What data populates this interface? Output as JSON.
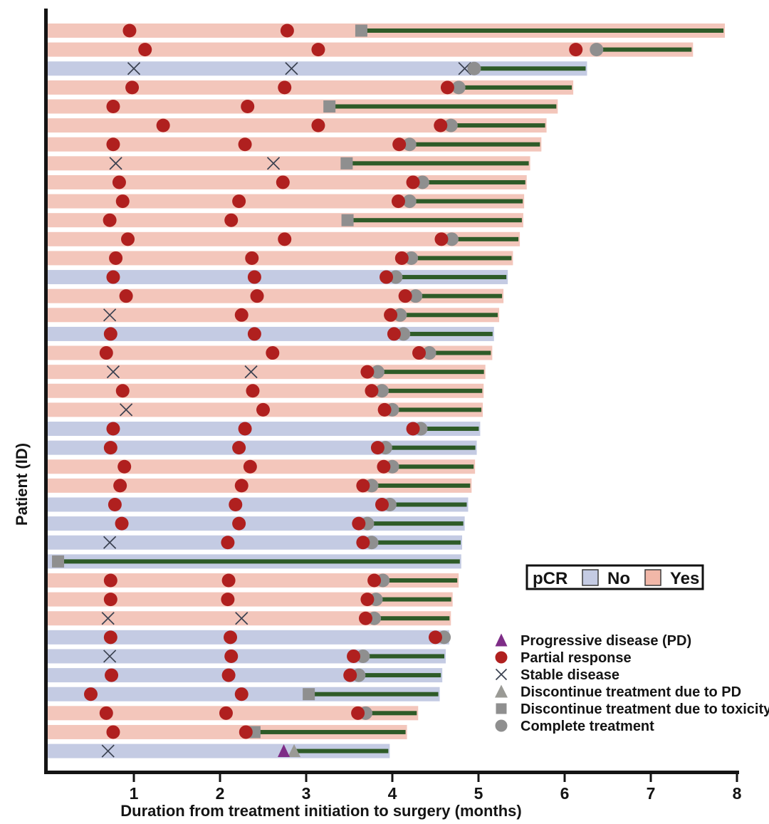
{
  "axes": {
    "x_label": "Duration from treatment initiation to surgery (months)",
    "y_label": "Patient (ID)",
    "x_ticks": [
      1,
      2,
      3,
      4,
      5,
      6,
      7,
      8
    ],
    "x_range": [
      0,
      8
    ]
  },
  "colors": {
    "bar_yes": "#f3c6bb",
    "bar_no": "#c4cbe3",
    "treatment_line": "#2e5b28",
    "partial_response": "#b0201f",
    "gray_marker": "#8f8f8f",
    "gray_triangle": "#9a9a95",
    "progressive_disease": "#7e2d87",
    "stable_disease": "#3a4150",
    "axis": "#141414",
    "legend_no_swatch": "#c4cbe3",
    "legend_yes_swatch": "#f1b7a8"
  },
  "legend": {
    "pcr": {
      "title": "pCR",
      "no_label": "No",
      "yes_label": "Yes"
    },
    "markers": [
      {
        "type": "pd",
        "label": "Progressive disease (PD)"
      },
      {
        "type": "pr",
        "label": "Partial response"
      },
      {
        "type": "sd",
        "label": "Stable disease"
      },
      {
        "type": "disc_pd",
        "label": "Discontinue treatment due to PD"
      },
      {
        "type": "disc_tox",
        "label": "Discontinue treatment due to toxicity"
      },
      {
        "type": "complete",
        "label": "Complete treatment"
      }
    ]
  },
  "chart_data": {
    "type": "swimmer",
    "x_unit": "months",
    "xlabel": "Duration from treatment initiation to surgery (months)",
    "ylabel": "Patient (ID)",
    "xlim": [
      0,
      8
    ],
    "event_types": {
      "pr": "Partial response",
      "sd": "Stable disease",
      "pd": "Progressive disease (PD)",
      "disc_pd": "Discontinue treatment due to PD",
      "disc_tox": "Discontinue treatment due to toxicity",
      "complete": "Complete treatment"
    },
    "patients": [
      {
        "pcr": "Yes",
        "end": 7.86,
        "events": [
          [
            "pr",
            0.95
          ],
          [
            "pr",
            2.78
          ],
          [
            "disc_tox",
            3.64
          ]
        ]
      },
      {
        "pcr": "Yes",
        "end": 7.49,
        "events": [
          [
            "pr",
            1.13
          ],
          [
            "pr",
            3.14
          ],
          [
            "pr",
            6.13
          ],
          [
            "complete",
            6.37
          ]
        ]
      },
      {
        "pcr": "No",
        "end": 6.26,
        "events": [
          [
            "sd",
            1.0
          ],
          [
            "sd",
            2.83
          ],
          [
            "sd",
            4.84
          ],
          [
            "complete",
            4.95
          ]
        ]
      },
      {
        "pcr": "Yes",
        "end": 6.1,
        "events": [
          [
            "pr",
            0.98
          ],
          [
            "pr",
            2.75
          ],
          [
            "pr",
            4.64
          ],
          [
            "complete",
            4.77
          ]
        ]
      },
      {
        "pcr": "Yes",
        "end": 5.92,
        "events": [
          [
            "pr",
            0.76
          ],
          [
            "pr",
            2.32
          ],
          [
            "disc_tox",
            3.27
          ]
        ]
      },
      {
        "pcr": "Yes",
        "end": 5.79,
        "events": [
          [
            "pr",
            1.34
          ],
          [
            "pr",
            3.14
          ],
          [
            "pr",
            4.56
          ],
          [
            "complete",
            4.68
          ]
        ]
      },
      {
        "pcr": "Yes",
        "end": 5.73,
        "events": [
          [
            "pr",
            0.76
          ],
          [
            "pr",
            2.29
          ],
          [
            "pr",
            4.08
          ],
          [
            "complete",
            4.2
          ]
        ]
      },
      {
        "pcr": "Yes",
        "end": 5.6,
        "events": [
          [
            "sd",
            0.79
          ],
          [
            "sd",
            2.62
          ],
          [
            "disc_tox",
            3.47
          ]
        ]
      },
      {
        "pcr": "Yes",
        "end": 5.56,
        "events": [
          [
            "pr",
            0.83
          ],
          [
            "pr",
            2.73
          ],
          [
            "pr",
            4.24
          ],
          [
            "complete",
            4.35
          ]
        ]
      },
      {
        "pcr": "Yes",
        "end": 5.53,
        "events": [
          [
            "pr",
            0.87
          ],
          [
            "pr",
            2.22
          ],
          [
            "pr",
            4.07
          ],
          [
            "complete",
            4.2
          ]
        ]
      },
      {
        "pcr": "Yes",
        "end": 5.52,
        "events": [
          [
            "pr",
            0.72
          ],
          [
            "pr",
            2.13
          ],
          [
            "disc_tox",
            3.48
          ]
        ]
      },
      {
        "pcr": "Yes",
        "end": 5.48,
        "events": [
          [
            "pr",
            0.93
          ],
          [
            "pr",
            2.75
          ],
          [
            "pr",
            4.57
          ],
          [
            "complete",
            4.69
          ]
        ]
      },
      {
        "pcr": "Yes",
        "end": 5.4,
        "events": [
          [
            "pr",
            0.79
          ],
          [
            "pr",
            2.37
          ],
          [
            "pr",
            4.11
          ],
          [
            "complete",
            4.22
          ]
        ]
      },
      {
        "pcr": "No",
        "end": 5.34,
        "events": [
          [
            "pr",
            0.76
          ],
          [
            "pr",
            2.4
          ],
          [
            "pr",
            3.93
          ],
          [
            "complete",
            4.04
          ]
        ]
      },
      {
        "pcr": "Yes",
        "end": 5.29,
        "events": [
          [
            "pr",
            0.91
          ],
          [
            "pr",
            2.43
          ],
          [
            "pr",
            4.15
          ],
          [
            "complete",
            4.27
          ]
        ]
      },
      {
        "pcr": "Yes",
        "end": 5.24,
        "events": [
          [
            "sd",
            0.72
          ],
          [
            "pr",
            2.25
          ],
          [
            "pr",
            3.98
          ],
          [
            "complete",
            4.09
          ]
        ]
      },
      {
        "pcr": "No",
        "end": 5.18,
        "events": [
          [
            "pr",
            0.73
          ],
          [
            "pr",
            2.4
          ],
          [
            "pr",
            4.02
          ],
          [
            "complete",
            4.13
          ]
        ]
      },
      {
        "pcr": "Yes",
        "end": 5.16,
        "events": [
          [
            "pr",
            0.68
          ],
          [
            "pr",
            2.61
          ],
          [
            "pr",
            4.31
          ],
          [
            "complete",
            4.43
          ]
        ]
      },
      {
        "pcr": "Yes",
        "end": 5.08,
        "events": [
          [
            "sd",
            0.76
          ],
          [
            "sd",
            2.36
          ],
          [
            "pr",
            3.71
          ],
          [
            "complete",
            3.83
          ]
        ]
      },
      {
        "pcr": "Yes",
        "end": 5.06,
        "events": [
          [
            "pr",
            0.87
          ],
          [
            "pr",
            2.38
          ],
          [
            "pr",
            3.76
          ],
          [
            "complete",
            3.88
          ]
        ]
      },
      {
        "pcr": "Yes",
        "end": 5.05,
        "events": [
          [
            "sd",
            0.91
          ],
          [
            "pr",
            2.5
          ],
          [
            "pr",
            3.91
          ],
          [
            "complete",
            4.0
          ]
        ]
      },
      {
        "pcr": "No",
        "end": 5.02,
        "events": [
          [
            "pr",
            0.76
          ],
          [
            "pr",
            2.29
          ],
          [
            "pr",
            4.24
          ],
          [
            "complete",
            4.33
          ]
        ]
      },
      {
        "pcr": "No",
        "end": 4.98,
        "events": [
          [
            "pr",
            0.73
          ],
          [
            "pr",
            2.22
          ],
          [
            "pr",
            3.83
          ],
          [
            "complete",
            3.92
          ]
        ]
      },
      {
        "pcr": "Yes",
        "end": 4.96,
        "events": [
          [
            "pr",
            0.89
          ],
          [
            "pr",
            2.35
          ],
          [
            "pr",
            3.9
          ],
          [
            "complete",
            4.0
          ]
        ]
      },
      {
        "pcr": "Yes",
        "end": 4.92,
        "events": [
          [
            "pr",
            0.84
          ],
          [
            "pr",
            2.25
          ],
          [
            "pr",
            3.66
          ],
          [
            "complete",
            3.76
          ]
        ]
      },
      {
        "pcr": "No",
        "end": 4.88,
        "events": [
          [
            "pr",
            0.78
          ],
          [
            "pr",
            2.18
          ],
          [
            "pr",
            3.88
          ],
          [
            "complete",
            3.97
          ]
        ]
      },
      {
        "pcr": "No",
        "end": 4.84,
        "events": [
          [
            "pr",
            0.86
          ],
          [
            "pr",
            2.22
          ],
          [
            "pr",
            3.61
          ],
          [
            "complete",
            3.71
          ]
        ]
      },
      {
        "pcr": "No",
        "end": 4.81,
        "events": [
          [
            "sd",
            0.72
          ],
          [
            "pr",
            2.09
          ],
          [
            "pr",
            3.66
          ],
          [
            "complete",
            3.76
          ]
        ]
      },
      {
        "pcr": "No",
        "end": 4.8,
        "events": [
          [
            "disc_tox",
            0.12
          ]
        ]
      },
      {
        "pcr": "Yes",
        "end": 4.77,
        "events": [
          [
            "pr",
            0.73
          ],
          [
            "pr",
            2.1
          ],
          [
            "pr",
            3.79
          ],
          [
            "complete",
            3.89
          ]
        ]
      },
      {
        "pcr": "Yes",
        "end": 4.7,
        "events": [
          [
            "pr",
            0.73
          ],
          [
            "pr",
            2.09
          ],
          [
            "pr",
            3.71
          ],
          [
            "complete",
            3.81
          ]
        ]
      },
      {
        "pcr": "Yes",
        "end": 4.68,
        "events": [
          [
            "sd",
            0.7
          ],
          [
            "sd",
            2.25
          ],
          [
            "pr",
            3.69
          ],
          [
            "complete",
            3.79
          ]
        ]
      },
      {
        "pcr": "No",
        "end": 4.66,
        "events": [
          [
            "pr",
            0.73
          ],
          [
            "pr",
            2.12
          ],
          [
            "pr",
            4.5
          ],
          [
            "complete",
            4.6
          ]
        ]
      },
      {
        "pcr": "No",
        "end": 4.62,
        "events": [
          [
            "sd",
            0.72
          ],
          [
            "pr",
            2.13
          ],
          [
            "pr",
            3.55
          ],
          [
            "complete",
            3.66
          ]
        ]
      },
      {
        "pcr": "No",
        "end": 4.58,
        "events": [
          [
            "pr",
            0.74
          ],
          [
            "pr",
            2.1
          ],
          [
            "pr",
            3.51
          ],
          [
            "complete",
            3.61
          ]
        ]
      },
      {
        "pcr": "No",
        "end": 4.55,
        "events": [
          [
            "pr",
            0.5
          ],
          [
            "pr",
            2.25
          ],
          [
            "disc_tox",
            3.03
          ]
        ]
      },
      {
        "pcr": "Yes",
        "end": 4.3,
        "events": [
          [
            "pr",
            0.68
          ],
          [
            "pr",
            2.07
          ],
          [
            "pr",
            3.6
          ],
          [
            "complete",
            3.69
          ]
        ]
      },
      {
        "pcr": "Yes",
        "end": 4.17,
        "events": [
          [
            "pr",
            0.76
          ],
          [
            "pr",
            2.3
          ],
          [
            "disc_tox",
            2.4
          ]
        ]
      },
      {
        "pcr": "No",
        "end": 3.97,
        "events": [
          [
            "sd",
            0.7
          ],
          [
            "pd",
            2.74
          ],
          [
            "disc_pd",
            2.86
          ]
        ]
      }
    ]
  }
}
